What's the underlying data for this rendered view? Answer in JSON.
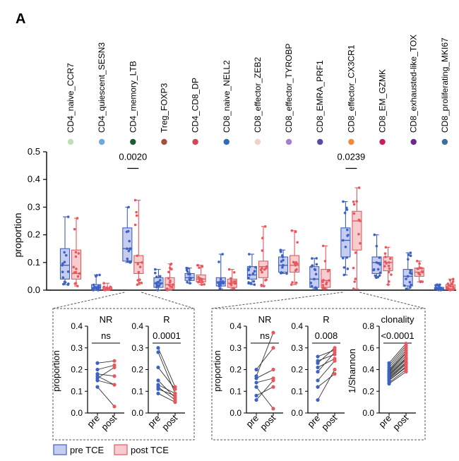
{
  "panel_label": "A",
  "colors": {
    "pre": "#3d62c4",
    "post": "#e8585f",
    "pre_fill": "#c7cdf0",
    "post_fill": "#f7cdcf",
    "axis": "#000000",
    "dashed_box": "#555555"
  },
  "chart_data": [
    {
      "type": "box",
      "id": "main",
      "title": "",
      "ylabel": "proportion",
      "ylim": [
        0,
        0.5
      ],
      "yticks": [
        "0.0",
        "0.1",
        "0.2",
        "0.3",
        "0.4",
        "0.5"
      ],
      "ytick_values": [
        0,
        0.1,
        0.2,
        0.3,
        0.4,
        0.5
      ],
      "groups": [
        "pre TCE",
        "post TCE"
      ],
      "categories": [
        {
          "label": "CD4_naive_CCR7",
          "dot_color": "#bfe0b3",
          "pre": {
            "min": 0.02,
            "q1": 0.04,
            "median": 0.09,
            "q3": 0.15,
            "max": 0.265
          },
          "post": {
            "min": 0.015,
            "q1": 0.04,
            "median": 0.06,
            "q3": 0.145,
            "max": 0.26
          }
        },
        {
          "label": "CD4_quiescent_SESN3",
          "dot_color": "#6ca8d9",
          "pre": {
            "min": 0.0,
            "q1": 0.005,
            "median": 0.01,
            "q3": 0.02,
            "max": 0.055
          },
          "post": {
            "min": 0.0,
            "q1": 0.002,
            "median": 0.005,
            "q3": 0.01,
            "max": 0.025
          }
        },
        {
          "label": "CD4_memory_LTB",
          "dot_color": "#1b5e2f",
          "pre": {
            "min": 0.1,
            "q1": 0.105,
            "median": 0.15,
            "q3": 0.225,
            "max": 0.3
          },
          "post": {
            "min": 0.02,
            "q1": 0.06,
            "median": 0.1,
            "q3": 0.125,
            "max": 0.325
          }
        },
        {
          "label": "Treg_FOXP3",
          "dot_color": "#a0523d",
          "pre": {
            "min": 0.0,
            "q1": 0.01,
            "median": 0.025,
            "q3": 0.045,
            "max": 0.075
          },
          "post": {
            "min": 0.0,
            "q1": 0.005,
            "median": 0.02,
            "q3": 0.045,
            "max": 0.095
          }
        },
        {
          "label": "CD4_CD8_DP",
          "dot_color": "#cf4a55",
          "pre": {
            "min": 0.025,
            "q1": 0.035,
            "median": 0.045,
            "q3": 0.06,
            "max": 0.08
          },
          "post": {
            "min": 0.02,
            "q1": 0.03,
            "median": 0.04,
            "q3": 0.055,
            "max": 0.09
          }
        },
        {
          "label": "CD8_naive_NELL2",
          "dot_color": "#2d6db5",
          "pre": {
            "min": 0.005,
            "q1": 0.015,
            "median": 0.03,
            "q3": 0.045,
            "max": 0.13
          },
          "post": {
            "min": 0.005,
            "q1": 0.01,
            "median": 0.025,
            "q3": 0.04,
            "max": 0.075
          }
        },
        {
          "label": "CD8_effector_ZEB2",
          "dot_color": "#f3cfc6",
          "pre": {
            "min": 0.02,
            "q1": 0.04,
            "median": 0.055,
            "q3": 0.085,
            "max": 0.13
          },
          "post": {
            "min": 0.015,
            "q1": 0.045,
            "median": 0.085,
            "q3": 0.105,
            "max": 0.23
          }
        },
        {
          "label": "CD8_effector_TYROBP",
          "dot_color": "#a97fc9",
          "pre": {
            "min": 0.06,
            "q1": 0.065,
            "median": 0.09,
            "q3": 0.12,
            "max": 0.145
          },
          "post": {
            "min": 0.02,
            "q1": 0.065,
            "median": 0.09,
            "q3": 0.125,
            "max": 0.215
          }
        },
        {
          "label": "CD8_EMRA_PRF1",
          "dot_color": "#5a4aa0",
          "pre": {
            "min": 0.005,
            "q1": 0.01,
            "median": 0.04,
            "q3": 0.085,
            "max": 0.115
          },
          "post": {
            "min": 0.005,
            "q1": 0.01,
            "median": 0.035,
            "q3": 0.075,
            "max": 0.16
          }
        },
        {
          "label": "CD8_effector_CX3CR1",
          "dot_color": "#f08a3c",
          "pre": {
            "min": 0.055,
            "q1": 0.12,
            "median": 0.18,
            "q3": 0.225,
            "max": 0.32
          },
          "post": {
            "min": 0.005,
            "q1": 0.145,
            "median": 0.25,
            "q3": 0.285,
            "max": 0.37
          }
        },
        {
          "label": "CD8_EM_GZMK",
          "dot_color": "#c41f5e",
          "pre": {
            "min": 0.045,
            "q1": 0.06,
            "median": 0.1,
            "q3": 0.12,
            "max": 0.2
          },
          "post": {
            "min": 0.02,
            "q1": 0.07,
            "median": 0.1,
            "q3": 0.12,
            "max": 0.155
          }
        },
        {
          "label": "CD8_exhausted-like_TOX",
          "dot_color": "#6b2a8e",
          "pre": {
            "min": 0.005,
            "q1": 0.015,
            "median": 0.05,
            "q3": 0.075,
            "max": 0.135
          },
          "post": {
            "min": 0.03,
            "q1": 0.05,
            "median": 0.065,
            "q3": 0.08,
            "max": 0.105
          }
        },
        {
          "label": "CD8_proliferating_MKI67",
          "dot_color": "#3f6f9a",
          "pre": {
            "min": 0.0,
            "q1": 0.002,
            "median": 0.005,
            "q3": 0.01,
            "max": 0.02
          },
          "post": {
            "min": 0.0,
            "q1": 0.002,
            "median": 0.005,
            "q3": 0.02,
            "max": 0.04
          }
        }
      ],
      "annotations": [
        {
          "text": "0.0020",
          "category_index": 2,
          "y": 0.44
        },
        {
          "text": "0.0239",
          "category_index": 9,
          "y": 0.44
        }
      ]
    },
    {
      "type": "paired",
      "id": "sub_mem_nr",
      "title": "NR",
      "sig": "ns",
      "ylabel": "proportion",
      "ylim": [
        0,
        0.4
      ],
      "yticks": [
        "0.0",
        "0.1",
        "0.2",
        "0.3",
        "0.4"
      ],
      "ytick_values": [
        0,
        0.1,
        0.2,
        0.3,
        0.4
      ],
      "x": [
        "pre",
        "post"
      ],
      "pairs": [
        [
          0.23,
          0.24
        ],
        [
          0.2,
          0.22
        ],
        [
          0.18,
          0.17
        ],
        [
          0.17,
          0.13
        ],
        [
          0.16,
          0.21
        ],
        [
          0.15,
          0.13
        ],
        [
          0.12,
          0.03
        ]
      ]
    },
    {
      "type": "paired",
      "id": "sub_mem_r",
      "title": "R",
      "sig": "0.0001",
      "ylabel": "",
      "ylim": [
        0,
        0.4
      ],
      "yticks": [
        "0.0",
        "0.1",
        "0.2",
        "0.3",
        "0.4"
      ],
      "ytick_values": [
        0,
        0.1,
        0.2,
        0.3,
        0.4
      ],
      "x": [
        "pre",
        "post"
      ],
      "pairs": [
        [
          0.3,
          0.12
        ],
        [
          0.28,
          0.09
        ],
        [
          0.21,
          0.11
        ],
        [
          0.15,
          0.07
        ],
        [
          0.13,
          0.09
        ],
        [
          0.12,
          0.06
        ],
        [
          0.11,
          0.08
        ],
        [
          0.09,
          0.05
        ]
      ]
    },
    {
      "type": "paired",
      "id": "sub_cx_nr",
      "title": "NR",
      "sig": "ns",
      "ylabel": "proportion",
      "ylim": [
        0,
        0.4
      ],
      "yticks": [
        "0.0",
        "0.1",
        "0.2",
        "0.3",
        "0.4"
      ],
      "ytick_values": [
        0,
        0.1,
        0.2,
        0.3,
        0.4
      ],
      "x": [
        "pre",
        "post"
      ],
      "pairs": [
        [
          0.2,
          0.3
        ],
        [
          0.17,
          0.37
        ],
        [
          0.16,
          0.2
        ],
        [
          0.14,
          0.16
        ],
        [
          0.12,
          0.02
        ],
        [
          0.08,
          0.12
        ],
        [
          0.06,
          0.15
        ]
      ]
    },
    {
      "type": "paired",
      "id": "sub_cx_r",
      "title": "R",
      "sig": "0.008",
      "ylabel": "",
      "ylim": [
        0,
        0.4
      ],
      "yticks": [
        "0.0",
        "0.1",
        "0.2",
        "0.3",
        "0.4"
      ],
      "ytick_values": [
        0,
        0.1,
        0.2,
        0.3,
        0.4
      ],
      "x": [
        "pre",
        "post"
      ],
      "pairs": [
        [
          0.26,
          0.29
        ],
        [
          0.24,
          0.27
        ],
        [
          0.23,
          0.3
        ],
        [
          0.21,
          0.25
        ],
        [
          0.19,
          0.28
        ],
        [
          0.15,
          0.24
        ],
        [
          0.12,
          0.18
        ],
        [
          0.06,
          0.2
        ]
      ]
    },
    {
      "type": "paired",
      "id": "sub_clonality",
      "title": "clonality",
      "sig": "<0.0001",
      "ylabel": "1/Shannon",
      "ylim": [
        0,
        0.8
      ],
      "yticks": [
        "0.0",
        "0.2",
        "0.4",
        "0.6",
        "0.8"
      ],
      "ytick_values": [
        0,
        0.2,
        0.4,
        0.6,
        0.8
      ],
      "x": [
        "pre",
        "post"
      ],
      "pairs": [
        [
          0.46,
          0.64
        ],
        [
          0.44,
          0.62
        ],
        [
          0.42,
          0.6
        ],
        [
          0.4,
          0.58
        ],
        [
          0.39,
          0.56
        ],
        [
          0.38,
          0.55
        ],
        [
          0.37,
          0.53
        ],
        [
          0.36,
          0.51
        ],
        [
          0.35,
          0.5
        ],
        [
          0.34,
          0.49
        ],
        [
          0.33,
          0.47
        ],
        [
          0.32,
          0.46
        ],
        [
          0.31,
          0.45
        ],
        [
          0.3,
          0.43
        ],
        [
          0.3,
          0.42
        ],
        [
          0.28,
          0.4
        ],
        [
          0.27,
          0.38
        ]
      ]
    }
  ],
  "legend": {
    "pre": "pre TCE",
    "post": "post TCE"
  }
}
